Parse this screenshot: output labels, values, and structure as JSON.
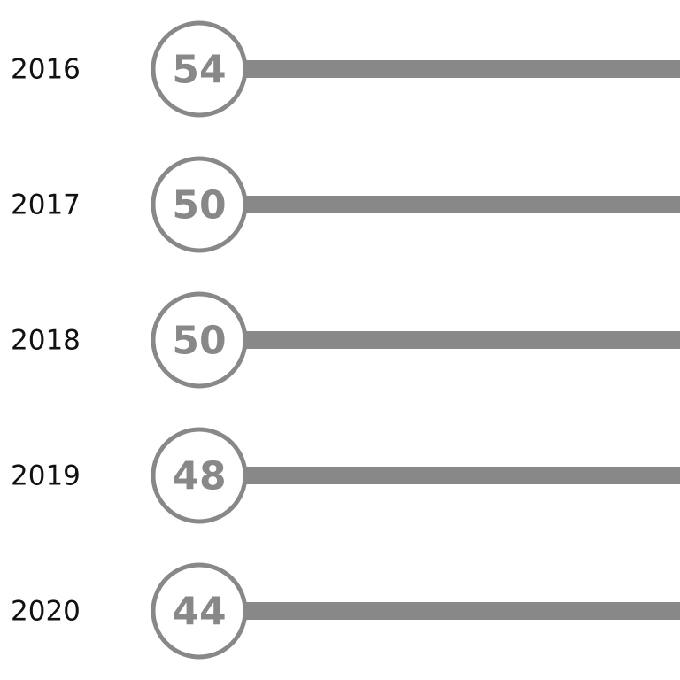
{
  "rows": [
    {
      "year": "2016",
      "value": 54
    },
    {
      "year": "2017",
      "value": 50
    },
    {
      "year": "2018",
      "value": 50
    },
    {
      "year": "2019",
      "value": 48
    },
    {
      "year": "2020",
      "value": 44
    }
  ]
}
